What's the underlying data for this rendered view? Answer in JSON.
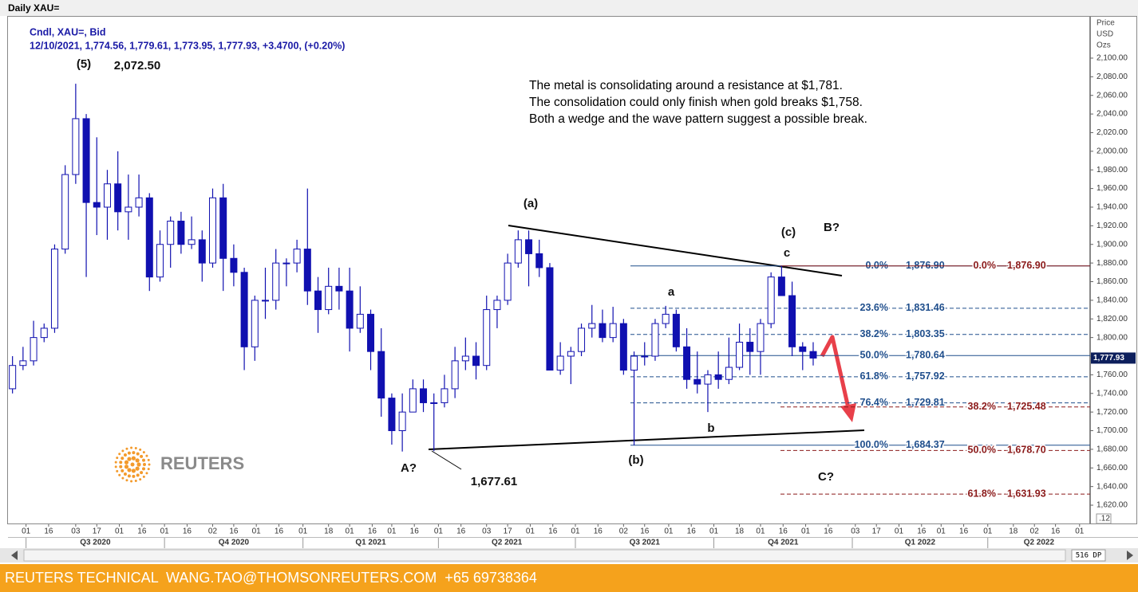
{
  "chart_data": {
    "type": "candlestick",
    "title": "Daily XAU=",
    "subtitle_lines": [
      "Cndl, XAU=, Bid",
      "12/10/2021, 1,774.56, 1,779.61, 1,773.95, 1,777.93, +3.4700, (+0.20%)"
    ],
    "y_axis_label_lines": [
      "Price",
      "USD",
      "Ozs"
    ],
    "note_lines": [
      "The metal is consolidating around a resistance at $1,781.",
      "The consolidation could only finish when gold breaks $1,758.",
      "Both a wedge and the wave pattern suggest a possible break."
    ],
    "annotations": [
      "(5)",
      "2,072.50",
      "(a)",
      "(c)",
      "c",
      "B?",
      "a",
      "b",
      "(b)",
      "A?",
      "1,677.61",
      "C?"
    ],
    "axis_corner_label": ".12",
    "up_color": "#ffffff",
    "down_color": "#1010b0",
    "line_color": "#1010b0",
    "x": [
      "2020-06-22",
      "2020-06-29",
      "2020-07-06",
      "2020-07-13",
      "2020-07-20",
      "2020-07-27",
      "2020-08-03",
      "2020-08-10",
      "2020-08-17",
      "2020-08-24",
      "2020-08-31",
      "2020-09-07",
      "2020-09-14",
      "2020-09-21",
      "2020-09-28",
      "2020-10-05",
      "2020-10-12",
      "2020-10-19",
      "2020-10-26",
      "2020-11-02",
      "2020-11-09",
      "2020-11-16",
      "2020-11-23",
      "2020-11-30",
      "2020-12-07",
      "2020-12-14",
      "2020-12-21",
      "2020-12-28",
      "2021-01-04",
      "2021-01-11",
      "2021-01-18",
      "2021-01-25",
      "2021-02-01",
      "2021-02-08",
      "2021-02-15",
      "2021-02-22",
      "2021-03-01",
      "2021-03-08",
      "2021-03-15",
      "2021-03-22",
      "2021-03-29",
      "2021-04-05",
      "2021-04-12",
      "2021-04-19",
      "2021-04-26",
      "2021-05-03",
      "2021-05-10",
      "2021-05-17",
      "2021-05-24",
      "2021-05-31",
      "2021-06-07",
      "2021-06-14",
      "2021-06-21",
      "2021-06-28",
      "2021-07-05",
      "2021-07-12",
      "2021-07-19",
      "2021-07-26",
      "2021-08-02",
      "2021-08-09",
      "2021-08-16",
      "2021-08-23",
      "2021-08-30",
      "2021-09-06",
      "2021-09-13",
      "2021-09-20",
      "2021-09-27",
      "2021-10-04",
      "2021-10-11",
      "2021-10-18",
      "2021-10-25",
      "2021-11-01",
      "2021-11-08",
      "2021-11-15",
      "2021-11-22",
      "2021-11-29",
      "2021-12-06"
    ],
    "open": [
      1745,
      1770,
      1775,
      1800,
      1810,
      1895,
      1975,
      2035,
      1945,
      1940,
      1965,
      1935,
      1940,
      1950,
      1865,
      1900,
      1925,
      1900,
      1905,
      1880,
      1950,
      1885,
      1870,
      1790,
      1840,
      1840,
      1880,
      1880,
      1895,
      1850,
      1830,
      1855,
      1850,
      1810,
      1825,
      1785,
      1735,
      1700,
      1720,
      1745,
      1730,
      1730,
      1745,
      1775,
      1780,
      1770,
      1830,
      1840,
      1880,
      1905,
      1890,
      1875,
      1765,
      1780,
      1785,
      1810,
      1815,
      1800,
      1815,
      1765,
      1780,
      1780,
      1815,
      1825,
      1790,
      1755,
      1750,
      1760,
      1755,
      1768,
      1795,
      1785,
      1815,
      1865,
      1845,
      1790,
      1785
    ],
    "high": [
      1780,
      1790,
      1818,
      1815,
      1900,
      1985,
      2072.5,
      2040,
      2015,
      1980,
      2000,
      1975,
      1975,
      1955,
      1915,
      1930,
      1935,
      1930,
      1915,
      1960,
      1965,
      1900,
      1875,
      1845,
      1875,
      1895,
      1885,
      1905,
      1960,
      1865,
      1875,
      1875,
      1875,
      1855,
      1830,
      1810,
      1740,
      1740,
      1755,
      1755,
      1740,
      1760,
      1790,
      1800,
      1795,
      1845,
      1845,
      1890,
      1915,
      1915,
      1905,
      1880,
      1795,
      1790,
      1815,
      1835,
      1830,
      1833,
      1820,
      1785,
      1795,
      1820,
      1834,
      1830,
      1810,
      1785,
      1765,
      1785,
      1800,
      1815,
      1810,
      1820,
      1870,
      1876.9,
      1860,
      1795,
      1795
    ],
    "low": [
      1740,
      1765,
      1770,
      1795,
      1805,
      1890,
      1965,
      1865,
      1910,
      1905,
      1915,
      1905,
      1930,
      1850,
      1860,
      1875,
      1890,
      1895,
      1860,
      1875,
      1850,
      1855,
      1765,
      1775,
      1820,
      1830,
      1855,
      1870,
      1835,
      1805,
      1825,
      1830,
      1785,
      1805,
      1765,
      1715,
      1685,
      1677.61,
      1720,
      1720,
      1678,
      1725,
      1735,
      1765,
      1755,
      1765,
      1810,
      1835,
      1875,
      1855,
      1865,
      1765,
      1760,
      1750,
      1780,
      1800,
      1795,
      1795,
      1760,
      1684.37,
      1770,
      1775,
      1810,
      1785,
      1745,
      1740,
      1720,
      1745,
      1750,
      1765,
      1760,
      1760,
      1810,
      1845,
      1780,
      1765,
      1770
    ],
    "close": [
      1770,
      1775,
      1800,
      1810,
      1895,
      1975,
      2035,
      1945,
      1940,
      1965,
      1935,
      1940,
      1950,
      1865,
      1900,
      1925,
      1900,
      1905,
      1880,
      1950,
      1885,
      1870,
      1790,
      1840,
      1840,
      1880,
      1880,
      1895,
      1850,
      1830,
      1855,
      1850,
      1810,
      1825,
      1785,
      1735,
      1700,
      1720,
      1745,
      1730,
      1730,
      1745,
      1775,
      1780,
      1770,
      1830,
      1840,
      1880,
      1905,
      1890,
      1875,
      1765,
      1780,
      1785,
      1810,
      1815,
      1800,
      1815,
      1765,
      1780,
      1780,
      1815,
      1825,
      1790,
      1755,
      1750,
      1760,
      1755,
      1768,
      1795,
      1785,
      1815,
      1865,
      1845,
      1790,
      1785,
      1777.93
    ],
    "xlim": [
      "2020-06-19",
      "2022-06-08"
    ],
    "ylim": [
      1599.5,
      2145.3
    ],
    "grid": false,
    "yticks": [
      {
        "value": 1620,
        "label": "1,620.00"
      },
      {
        "value": 1640,
        "label": "1,640.00"
      },
      {
        "value": 1660,
        "label": "1,660.00"
      },
      {
        "value": 1680,
        "label": "1,680.00"
      },
      {
        "value": 1700,
        "label": "1,700.00"
      },
      {
        "value": 1720,
        "label": "1,720.00"
      },
      {
        "value": 1740,
        "label": "1,740.00"
      },
      {
        "value": 1760,
        "label": "1,760.00"
      },
      {
        "value": 1780,
        "label": "1,780.00"
      },
      {
        "value": 1800,
        "label": "1,800.00"
      },
      {
        "value": 1820,
        "label": "1,820.00"
      },
      {
        "value": 1840,
        "label": "1,840.00"
      },
      {
        "value": 1860,
        "label": "1,860.00"
      },
      {
        "value": 1880,
        "label": "1,880.00"
      },
      {
        "value": 1900,
        "label": "1,900.00"
      },
      {
        "value": 1920,
        "label": "1,920.00"
      },
      {
        "value": 1940,
        "label": "1,940.00"
      },
      {
        "value": 1960,
        "label": "1,960.00"
      },
      {
        "value": 1980,
        "label": "1,980.00"
      },
      {
        "value": 2000,
        "label": "2,000.00"
      },
      {
        "value": 2020,
        "label": "2,020.00"
      },
      {
        "value": 2040,
        "label": "2,040.00"
      },
      {
        "value": 2060,
        "label": "2,060.00"
      },
      {
        "value": 2080,
        "label": "2,080.00"
      },
      {
        "value": 2100,
        "label": "2,100.00"
      }
    ],
    "xticks": [
      {
        "value": "2020-07-01",
        "label": "01"
      },
      {
        "value": "2020-07-16",
        "label": "16"
      },
      {
        "value": "2020-08-03",
        "label": "03"
      },
      {
        "value": "2020-08-17",
        "label": "17"
      },
      {
        "value": "2020-09-01",
        "label": "01"
      },
      {
        "value": "2020-09-16",
        "label": "16"
      },
      {
        "value": "2020-10-01",
        "label": "01"
      },
      {
        "value": "2020-10-16",
        "label": "16"
      },
      {
        "value": "2020-11-02",
        "label": "02"
      },
      {
        "value": "2020-11-16",
        "label": "16"
      },
      {
        "value": "2020-12-01",
        "label": "01"
      },
      {
        "value": "2020-12-16",
        "label": "16"
      },
      {
        "value": "2021-01-01",
        "label": "01"
      },
      {
        "value": "2021-01-18",
        "label": "18"
      },
      {
        "value": "2021-02-01",
        "label": "01"
      },
      {
        "value": "2021-02-16",
        "label": "16"
      },
      {
        "value": "2021-03-01",
        "label": "01"
      },
      {
        "value": "2021-03-16",
        "label": "16"
      },
      {
        "value": "2021-04-01",
        "label": "01"
      },
      {
        "value": "2021-04-16",
        "label": "16"
      },
      {
        "value": "2021-05-03",
        "label": "03"
      },
      {
        "value": "2021-05-17",
        "label": "17"
      },
      {
        "value": "2021-06-01",
        "label": "01"
      },
      {
        "value": "2021-06-16",
        "label": "16"
      },
      {
        "value": "2021-07-01",
        "label": "01"
      },
      {
        "value": "2021-07-16",
        "label": "16"
      },
      {
        "value": "2021-08-02",
        "label": "02"
      },
      {
        "value": "2021-08-16",
        "label": "16"
      },
      {
        "value": "2021-09-01",
        "label": "01"
      },
      {
        "value": "2021-09-16",
        "label": "16"
      },
      {
        "value": "2021-10-01",
        "label": "01"
      },
      {
        "value": "2021-10-18",
        "label": "18"
      },
      {
        "value": "2021-11-01",
        "label": "01"
      },
      {
        "value": "2021-11-16",
        "label": "16"
      },
      {
        "value": "2021-12-01",
        "label": "01"
      },
      {
        "value": "2021-12-16",
        "label": "16"
      },
      {
        "value": "2022-01-03",
        "label": "03"
      },
      {
        "value": "2022-01-17",
        "label": "17"
      },
      {
        "value": "2022-02-01",
        "label": "01"
      },
      {
        "value": "2022-02-16",
        "label": "16"
      },
      {
        "value": "2022-03-01",
        "label": "01"
      },
      {
        "value": "2022-03-16",
        "label": "16"
      },
      {
        "value": "2022-04-01",
        "label": "01"
      },
      {
        "value": "2022-04-18",
        "label": "18"
      },
      {
        "value": "2022-05-02",
        "label": "02"
      },
      {
        "value": "2022-05-16",
        "label": "16"
      },
      {
        "value": "2022-06-01",
        "label": "01"
      }
    ],
    "quarter_ticks": [
      {
        "value": "2020-07-01",
        "label": "Q3 2020"
      },
      {
        "value": "2020-10-01",
        "label": "Q4 2020"
      },
      {
        "value": "2021-01-01",
        "label": "Q1 2021"
      },
      {
        "value": "2021-04-01",
        "label": "Q2 2021"
      },
      {
        "value": "2021-07-01",
        "label": "Q3 2021"
      },
      {
        "value": "2021-10-01",
        "label": "Q4 2021"
      },
      {
        "value": "2022-01-01",
        "label": "Q1 2022"
      },
      {
        "value": "2022-04-01",
        "label": "Q2 2022"
      }
    ],
    "last_price": {
      "value": 1777.93,
      "label": "1,777.93"
    },
    "fib_retracements": [
      {
        "color": "#1f4e8c",
        "levels": [
          {
            "ratio": "0.0%",
            "price": {
              "value": 1876.9,
              "label": "1,876.90"
            },
            "dashed": false
          },
          {
            "ratio": "23.6%",
            "price": {
              "value": 1831.46,
              "label": "1,831.46"
            },
            "dashed": true
          },
          {
            "ratio": "38.2%",
            "price": {
              "value": 1803.35,
              "label": "1,803.35"
            },
            "dashed": true
          },
          {
            "ratio": "50.0%",
            "price": {
              "value": 1780.64,
              "label": "1,780.64"
            },
            "dashed": false
          },
          {
            "ratio": "61.8%",
            "price": {
              "value": 1757.92,
              "label": "1,757.92"
            },
            "dashed": true
          },
          {
            "ratio": "76.4%",
            "price": {
              "value": 1729.81,
              "label": "1,729.81"
            },
            "dashed": true
          },
          {
            "ratio": "100.0%",
            "price": {
              "value": 1684.37,
              "label": "1,684.37"
            },
            "dashed": false
          }
        ]
      },
      {
        "color": "#8b1a1a",
        "levels": [
          {
            "ratio": "0.0%",
            "price": {
              "value": 1876.9,
              "label": "1,876.90"
            },
            "dashed": false
          },
          {
            "ratio": "38.2%",
            "price": {
              "value": 1725.48,
              "label": "1,725.48"
            },
            "dashed": true
          },
          {
            "ratio": "50.0%",
            "price": {
              "value": 1678.7,
              "label": "1,678.70"
            },
            "dashed": true
          },
          {
            "ratio": "61.8%",
            "price": {
              "value": 1631.93,
              "label": "1,631.93"
            },
            "dashed": true
          }
        ]
      }
    ]
  },
  "logo": "REUTERS",
  "scrollbar_label": "516 DP",
  "footer": "REUTERS TECHNICAL  WANG.TAO@THOMSONREUTERS.COM  +65 69738364"
}
